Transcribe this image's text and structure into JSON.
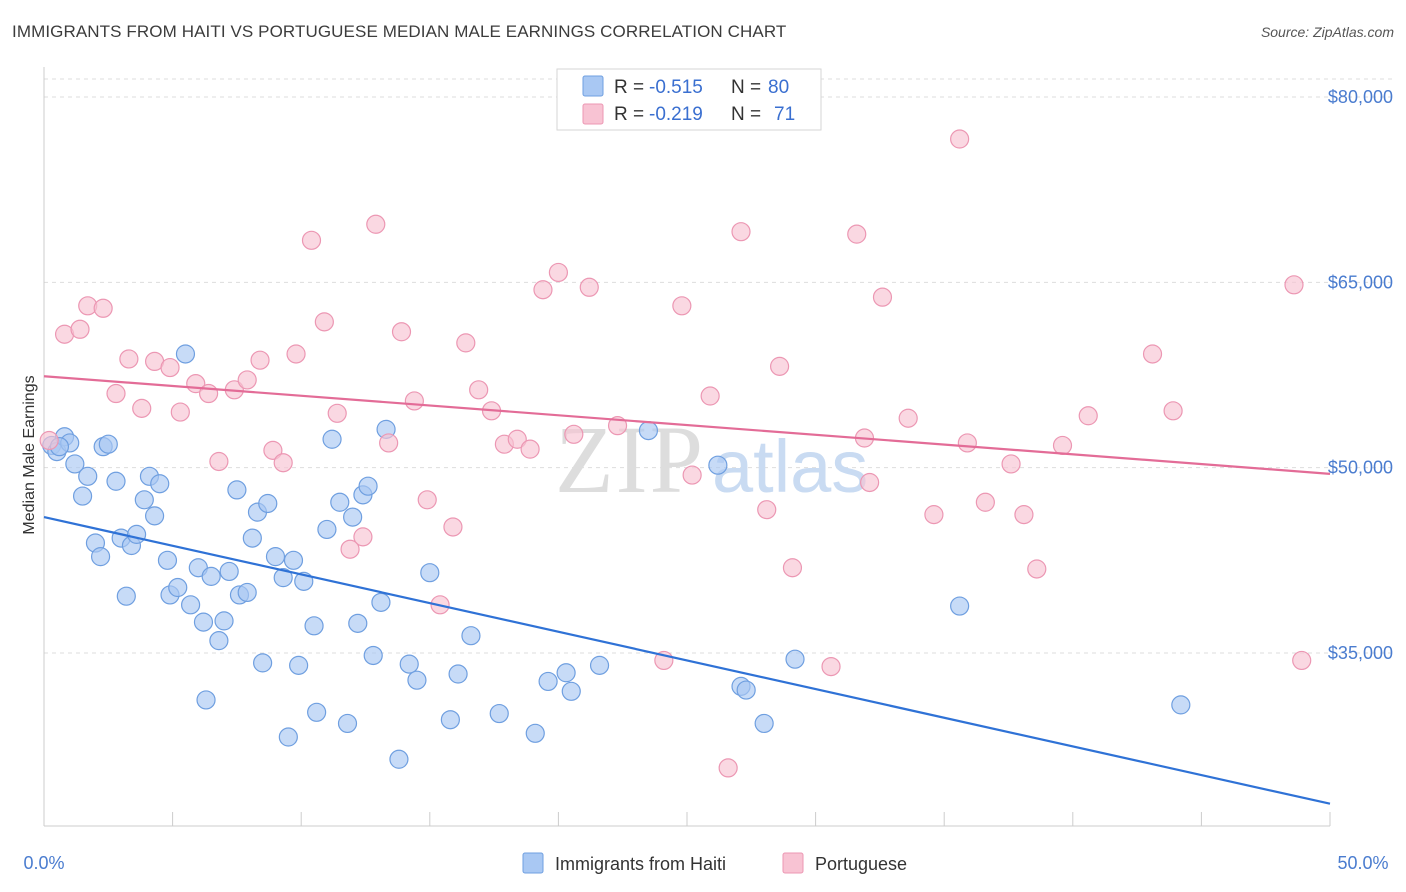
{
  "title": "IMMIGRANTS FROM HAITI VS PORTUGUESE MEDIAN MALE EARNINGS CORRELATION CHART",
  "source": "Source: ZipAtlas.com",
  "colors": {
    "haiti_fill": "#a9c8f3",
    "haiti_stroke": "#6f9fe0",
    "haiti_line": "#2f72d6",
    "portuguese_fill": "#f8c3d3",
    "portuguese_stroke": "#ec97b3",
    "portuguese_line": "#e36c97",
    "tick_text": "#4a7ccf",
    "grid": "#dddddd"
  },
  "legend": {
    "rows": [
      {
        "r_label": "R =",
        "r_value": "-0.515",
        "n_label": "N =",
        "n_value": "80"
      },
      {
        "r_label": "R =",
        "r_value": "-0.219",
        "n_label": "N =",
        "n_value": "71"
      }
    ]
  },
  "watermark": {
    "zip": "ZIP",
    "atlas": "atlas"
  },
  "chart_data": {
    "type": "scatter",
    "title": "IMMIGRANTS FROM HAITI VS PORTUGUESE MEDIAN MALE EARNINGS CORRELATION CHART",
    "xlabel": "",
    "ylabel": "Median Male Earnings",
    "xlim": [
      0,
      50
    ],
    "ylim": [
      20000,
      83000
    ],
    "x_tick_labels": [
      "0.0%",
      "50.0%"
    ],
    "y_ticks": [
      35000,
      50000,
      65000,
      80000
    ],
    "y_tick_labels": [
      "$35,000",
      "$50,000",
      "$65,000",
      "$80,000"
    ],
    "grid": true,
    "legend_position": "top-center",
    "series": [
      {
        "name": "Immigrants from Haiti",
        "trend": {
          "x": [
            0,
            50
          ],
          "y": [
            46000,
            22800
          ]
        },
        "points": [
          [
            0.3,
            51800
          ],
          [
            0.5,
            51300
          ],
          [
            0.8,
            52500
          ],
          [
            1.0,
            52000
          ],
          [
            1.2,
            50300
          ],
          [
            1.5,
            47700
          ],
          [
            1.7,
            49300
          ],
          [
            2.0,
            43900
          ],
          [
            2.2,
            42800
          ],
          [
            2.3,
            51700
          ],
          [
            2.5,
            51900
          ],
          [
            2.8,
            48900
          ],
          [
            3.0,
            44300
          ],
          [
            3.2,
            39600
          ],
          [
            3.4,
            43700
          ],
          [
            3.6,
            44600
          ],
          [
            3.9,
            47400
          ],
          [
            4.1,
            49300
          ],
          [
            4.3,
            46100
          ],
          [
            4.5,
            48700
          ],
          [
            4.8,
            42500
          ],
          [
            4.9,
            39700
          ],
          [
            5.2,
            40300
          ],
          [
            5.5,
            59200
          ],
          [
            5.7,
            38900
          ],
          [
            6.0,
            41900
          ],
          [
            6.2,
            37500
          ],
          [
            6.3,
            31200
          ],
          [
            6.5,
            41200
          ],
          [
            6.8,
            36000
          ],
          [
            7.0,
            37600
          ],
          [
            7.2,
            41600
          ],
          [
            7.5,
            48200
          ],
          [
            7.6,
            39700
          ],
          [
            7.9,
            39900
          ],
          [
            8.1,
            44300
          ],
          [
            8.3,
            46400
          ],
          [
            8.5,
            34200
          ],
          [
            8.7,
            47100
          ],
          [
            9.0,
            42800
          ],
          [
            9.3,
            41100
          ],
          [
            9.5,
            28200
          ],
          [
            9.7,
            42500
          ],
          [
            9.9,
            34000
          ],
          [
            10.1,
            40800
          ],
          [
            10.5,
            37200
          ],
          [
            10.6,
            30200
          ],
          [
            11.0,
            45000
          ],
          [
            11.2,
            52300
          ],
          [
            11.5,
            47200
          ],
          [
            11.8,
            29300
          ],
          [
            12.0,
            46000
          ],
          [
            12.2,
            37400
          ],
          [
            12.4,
            47800
          ],
          [
            12.6,
            48500
          ],
          [
            12.8,
            34800
          ],
          [
            13.1,
            39100
          ],
          [
            13.3,
            53100
          ],
          [
            13.8,
            26400
          ],
          [
            14.2,
            34100
          ],
          [
            14.5,
            32800
          ],
          [
            15.0,
            41500
          ],
          [
            15.8,
            29600
          ],
          [
            16.1,
            33300
          ],
          [
            16.6,
            36400
          ],
          [
            17.7,
            30100
          ],
          [
            19.1,
            28500
          ],
          [
            19.6,
            32700
          ],
          [
            20.3,
            33400
          ],
          [
            20.5,
            31900
          ],
          [
            21.6,
            34000
          ],
          [
            23.5,
            53000
          ],
          [
            26.2,
            50200
          ],
          [
            27.1,
            32300
          ],
          [
            27.3,
            32000
          ],
          [
            28.0,
            29300
          ],
          [
            29.2,
            34500
          ],
          [
            35.6,
            38800
          ],
          [
            44.2,
            30800
          ],
          [
            0.6,
            51700
          ]
        ]
      },
      {
        "name": "Portuguese",
        "trend": {
          "x": [
            0,
            50
          ],
          "y": [
            57400,
            49500
          ]
        },
        "points": [
          [
            0.2,
            52200
          ],
          [
            0.8,
            60800
          ],
          [
            1.4,
            61200
          ],
          [
            1.7,
            63100
          ],
          [
            2.3,
            62900
          ],
          [
            2.8,
            56000
          ],
          [
            3.3,
            58800
          ],
          [
            3.8,
            54800
          ],
          [
            4.3,
            58600
          ],
          [
            4.9,
            58100
          ],
          [
            5.3,
            54500
          ],
          [
            5.9,
            56800
          ],
          [
            6.4,
            56000
          ],
          [
            6.8,
            50500
          ],
          [
            7.4,
            56300
          ],
          [
            7.9,
            57100
          ],
          [
            8.4,
            58700
          ],
          [
            8.9,
            51400
          ],
          [
            9.3,
            50400
          ],
          [
            9.8,
            59200
          ],
          [
            10.4,
            68400
          ],
          [
            10.9,
            61800
          ],
          [
            11.4,
            54400
          ],
          [
            11.9,
            43400
          ],
          [
            12.4,
            44400
          ],
          [
            12.9,
            69700
          ],
          [
            13.4,
            52000
          ],
          [
            13.9,
            61000
          ],
          [
            14.4,
            55400
          ],
          [
            14.9,
            47400
          ],
          [
            15.4,
            38900
          ],
          [
            15.9,
            45200
          ],
          [
            16.4,
            60100
          ],
          [
            16.9,
            56300
          ],
          [
            17.4,
            54600
          ],
          [
            17.9,
            51900
          ],
          [
            18.4,
            52300
          ],
          [
            18.9,
            51500
          ],
          [
            19.4,
            64400
          ],
          [
            20.0,
            65800
          ],
          [
            20.6,
            52700
          ],
          [
            21.2,
            64600
          ],
          [
            22.3,
            53400
          ],
          [
            24.1,
            34400
          ],
          [
            24.8,
            63100
          ],
          [
            25.2,
            49400
          ],
          [
            25.9,
            55800
          ],
          [
            26.6,
            25700
          ],
          [
            27.1,
            69100
          ],
          [
            28.1,
            46600
          ],
          [
            28.6,
            58200
          ],
          [
            29.1,
            41900
          ],
          [
            30.6,
            33900
          ],
          [
            31.6,
            68900
          ],
          [
            31.9,
            52400
          ],
          [
            32.6,
            63800
          ],
          [
            32.1,
            48800
          ],
          [
            33.6,
            54000
          ],
          [
            34.6,
            46200
          ],
          [
            35.6,
            76600
          ],
          [
            35.9,
            52000
          ],
          [
            36.6,
            47200
          ],
          [
            37.6,
            50300
          ],
          [
            38.1,
            46200
          ],
          [
            38.6,
            41800
          ],
          [
            39.6,
            51800
          ],
          [
            40.6,
            54200
          ],
          [
            43.1,
            59200
          ],
          [
            43.9,
            54600
          ],
          [
            48.6,
            64800
          ],
          [
            48.9,
            34400
          ]
        ]
      }
    ]
  },
  "bottom_legend": [
    {
      "label": "Immigrants from Haiti"
    },
    {
      "label": "Portuguese"
    }
  ]
}
